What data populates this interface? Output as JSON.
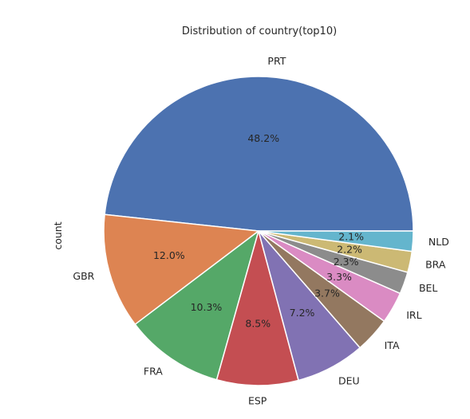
{
  "chart_data": {
    "type": "pie",
    "title": "Distribution of country(top10)",
    "ylabel": "count",
    "start_angle_deg": 0,
    "direction": "counterclockwise",
    "slices": [
      {
        "label": "PRT",
        "pct": 48.2,
        "pct_text": "48.2%",
        "color": "#4C72B0"
      },
      {
        "label": "GBR",
        "pct": 12.0,
        "pct_text": "12.0%",
        "color": "#DD8452"
      },
      {
        "label": "FRA",
        "pct": 10.3,
        "pct_text": "10.3%",
        "color": "#55A868"
      },
      {
        "label": "ESP",
        "pct": 8.5,
        "pct_text": "8.5%",
        "color": "#C44E52"
      },
      {
        "label": "DEU",
        "pct": 7.2,
        "pct_text": "7.2%",
        "color": "#8172B3"
      },
      {
        "label": "ITA",
        "pct": 3.7,
        "pct_text": "3.7%",
        "color": "#937860"
      },
      {
        "label": "IRL",
        "pct": 3.3,
        "pct_text": "3.3%",
        "color": "#DA8BC3"
      },
      {
        "label": "BEL",
        "pct": 2.3,
        "pct_text": "2.3%",
        "color": "#8C8C8C"
      },
      {
        "label": "BRA",
        "pct": 2.2,
        "pct_text": "2.2%",
        "color": "#CCB974"
      },
      {
        "label": "NLD",
        "pct": 2.1,
        "pct_text": "2.1%",
        "color": "#64B5CD"
      }
    ]
  }
}
